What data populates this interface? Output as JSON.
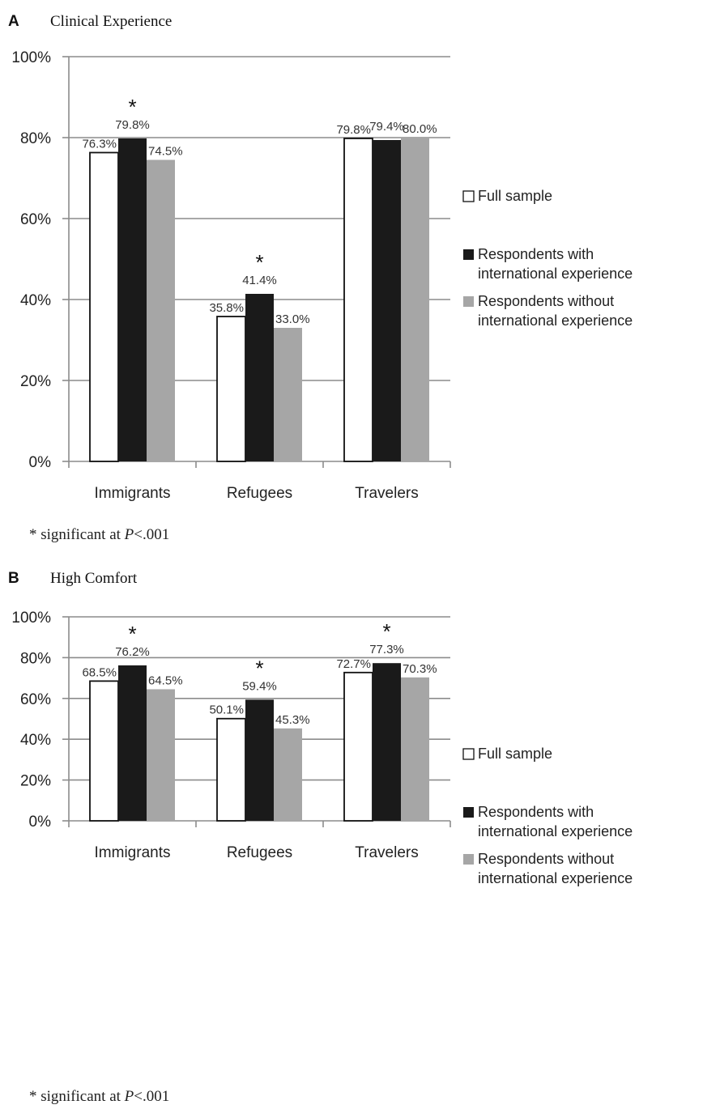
{
  "chart_data": [
    {
      "type": "bar",
      "panel_letter": "A",
      "title": "Clinical Experience",
      "categories": [
        "Immigrants",
        "Refugees",
        "Travelers"
      ],
      "series": [
        {
          "name": "Full sample",
          "values": [
            76.3,
            35.8,
            79.8
          ],
          "color": "#ffffff"
        },
        {
          "name": "Respondents with international experience",
          "values": [
            79.8,
            41.4,
            79.4
          ],
          "color": "#1a1a1a"
        },
        {
          "name": "Respondents without international experience",
          "values": [
            74.5,
            33.0,
            80.0
          ],
          "color": "#a6a6a6"
        }
      ],
      "value_labels": [
        [
          "76.3%",
          "35.8%",
          "79.8%"
        ],
        [
          "79.8%",
          "41.4%",
          "79.4%"
        ],
        [
          "74.5%",
          "33.0%",
          "80.0%"
        ]
      ],
      "significant": [
        false,
        true,
        false,
        false,
        true,
        false,
        false,
        false,
        false
      ],
      "significance_marker": "*",
      "ylim": [
        0,
        100
      ],
      "y_ticks": [
        "0%",
        "20%",
        "40%",
        "60%",
        "80%",
        "100%"
      ],
      "grid": true,
      "legend_placement": "right",
      "footnote": {
        "prefix": "* significant at ",
        "p": "P",
        "suffix": "<.001"
      }
    },
    {
      "type": "bar",
      "panel_letter": "B",
      "title": "High Comfort",
      "categories": [
        "Immigrants",
        "Refugees",
        "Travelers"
      ],
      "series": [
        {
          "name": "Full sample",
          "values": [
            68.5,
            50.1,
            72.7
          ],
          "color": "#ffffff"
        },
        {
          "name": "Respondents with international experience",
          "values": [
            76.2,
            59.4,
            77.3
          ],
          "color": "#1a1a1a"
        },
        {
          "name": "Respondents without international experience",
          "values": [
            64.5,
            45.3,
            70.3
          ],
          "color": "#a6a6a6"
        }
      ],
      "value_labels": [
        [
          "68.5%",
          "50.1%",
          "72.7%"
        ],
        [
          "76.2%",
          "59.4%",
          "77.3%"
        ],
        [
          "64.5%",
          "45.3%",
          "70.3%"
        ]
      ],
      "significant": [
        false,
        true,
        false,
        false,
        true,
        false,
        false,
        true,
        false
      ],
      "significance_marker": "*",
      "ylim": [
        0,
        100
      ],
      "y_ticks": [
        "0%",
        "20%",
        "40%",
        "60%",
        "80%",
        "100%"
      ],
      "grid": true,
      "legend_placement": "right",
      "footnote": {
        "prefix": "* significant at ",
        "p": "P",
        "suffix": "<.001"
      }
    }
  ]
}
